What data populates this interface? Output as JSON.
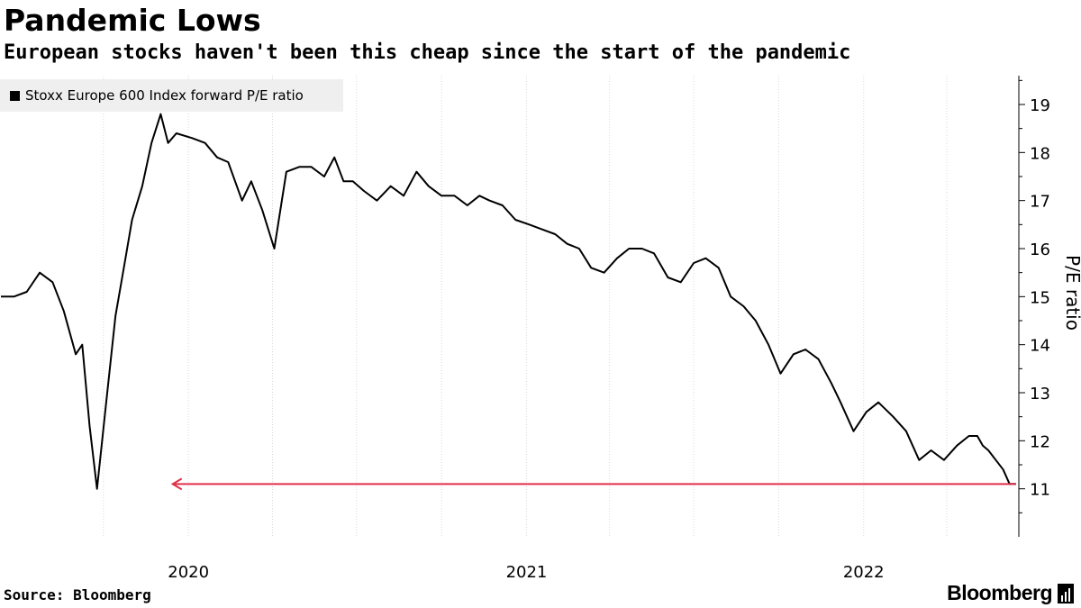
{
  "header": {
    "title": "Pandemic Lows",
    "subtitle": "European stocks haven't been this cheap since the start of the pandemic"
  },
  "footer": {
    "source": "Source: Bloomberg",
    "brand": "Bloomberg"
  },
  "colors": {
    "line": "#000000",
    "annotation_arrow": "#e0314b",
    "legend_bg": "#efefef"
  },
  "chart_data": {
    "type": "line",
    "title": "Pandemic Lows",
    "subtitle": "European stocks haven't been this cheap since the start of the pandemic",
    "xlabel": "",
    "ylabel": "P/E ratio",
    "legend": {
      "position": "top-left",
      "entries": [
        "Stoxx Europe 600 Index forward P/E ratio"
      ]
    },
    "y_axis": {
      "side": "right",
      "range": [
        10,
        19.6
      ],
      "ticks": [
        11,
        12,
        13,
        14,
        15,
        16,
        17,
        18,
        19
      ]
    },
    "x_axis": {
      "range": [
        "2019-06-11",
        "2022-06-18"
      ],
      "tick_labels": [
        "2020",
        "2021",
        "2022"
      ],
      "label_positions": [
        "2020-01-01",
        "2021-01-01",
        "2022-01-01"
      ]
    },
    "grid": true,
    "annotations": [
      {
        "type": "arrow",
        "y": 11.1,
        "from": "2022-06-15",
        "to": "2019-12-15",
        "color": "#e0314b"
      }
    ],
    "series": [
      {
        "name": "Stoxx Europe 600 Index forward P/E ratio",
        "x": [
          "2019-06-12",
          "2019-06-26",
          "2019-07-10",
          "2019-07-24",
          "2019-08-07",
          "2019-08-19",
          "2019-09-01",
          "2019-09-08",
          "2019-09-16",
          "2019-09-24",
          "2019-10-04",
          "2019-10-14",
          "2019-10-24",
          "2019-11-01",
          "2019-11-12",
          "2019-11-22",
          "2019-12-02",
          "2019-12-10",
          "2019-12-19",
          "2020-01-05",
          "2020-01-19",
          "2020-02-01",
          "2020-02-13",
          "2020-02-28",
          "2020-03-09",
          "2020-03-21",
          "2020-04-03",
          "2020-04-16",
          "2020-04-30",
          "2020-05-13",
          "2020-05-27",
          "2020-06-07",
          "2020-06-17",
          "2020-06-27",
          "2020-07-09",
          "2020-07-23",
          "2020-08-07",
          "2020-08-21",
          "2020-09-04",
          "2020-09-17",
          "2020-10-01",
          "2020-10-15",
          "2020-10-29",
          "2020-11-11",
          "2020-11-22",
          "2020-12-06",
          "2020-12-20",
          "2021-01-04",
          "2021-01-18",
          "2021-02-01",
          "2021-02-14",
          "2021-02-27",
          "2021-03-12",
          "2021-03-26",
          "2021-04-09",
          "2021-04-22",
          "2021-05-06",
          "2021-05-19",
          "2021-06-03",
          "2021-06-17",
          "2021-07-01",
          "2021-07-14",
          "2021-07-28",
          "2021-08-10",
          "2021-08-24",
          "2021-09-06",
          "2021-09-20",
          "2021-10-03",
          "2021-10-17",
          "2021-10-30",
          "2021-11-13",
          "2021-11-27",
          "2021-12-07",
          "2021-12-21",
          "2022-01-04",
          "2022-01-17",
          "2022-02-02",
          "2022-02-16",
          "2022-03-02",
          "2022-03-15",
          "2022-03-29",
          "2022-04-12",
          "2022-04-25",
          "2022-05-04",
          "2022-05-10",
          "2022-05-16",
          "2022-05-24",
          "2022-06-01",
          "2022-06-08",
          "2022-06-15"
        ],
        "values": [
          15.0,
          15.0,
          15.1,
          15.5,
          15.3,
          14.7,
          13.8,
          14.0,
          12.3,
          11.0,
          12.8,
          14.6,
          15.7,
          16.6,
          17.3,
          18.2,
          18.8,
          18.2,
          18.4,
          18.3,
          18.2,
          17.9,
          17.8,
          17.0,
          17.4,
          16.8,
          16.0,
          17.6,
          17.7,
          17.7,
          17.5,
          17.9,
          17.4,
          17.4,
          17.2,
          17.0,
          17.3,
          17.1,
          17.6,
          17.3,
          17.1,
          17.1,
          16.9,
          17.1,
          17.0,
          16.9,
          16.6,
          16.5,
          16.4,
          16.3,
          16.1,
          16.0,
          15.6,
          15.5,
          15.8,
          16.0,
          16.0,
          15.9,
          15.4,
          15.3,
          15.7,
          15.8,
          15.6,
          15.0,
          14.8,
          14.5,
          14.0,
          13.4,
          13.8,
          13.9,
          13.7,
          13.2,
          12.8,
          12.2,
          12.6,
          12.8,
          12.5,
          12.2,
          11.6,
          11.8,
          11.6,
          11.9,
          12.1,
          12.1,
          11.9,
          11.8,
          11.6,
          11.4,
          11.1,
          11.1
        ]
      }
    ]
  }
}
